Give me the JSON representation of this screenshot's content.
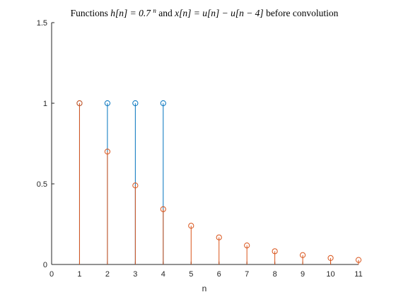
{
  "chart_data": {
    "type": "stem",
    "title": {
      "prefix": "Functions ",
      "h_expr": "h[n] = 0.7",
      "h_sup": "n",
      "middle": " and ",
      "x_expr": "x[n] = u[n] − u[n − 4]",
      "suffix": " before convolution"
    },
    "xlabel": "n",
    "ylabel": "",
    "xlim": [
      0,
      11
    ],
    "ylim": [
      0,
      1.5
    ],
    "xticks": [
      0,
      1,
      2,
      3,
      4,
      5,
      6,
      7,
      8,
      9,
      10,
      11
    ],
    "yticks": [
      0,
      0.5,
      1,
      1.5
    ],
    "ytick_labels": [
      "0",
      "0.5",
      "1",
      "1.5"
    ],
    "grid": false,
    "series": [
      {
        "x": [
          1,
          2,
          3,
          4
        ],
        "values": [
          1,
          1,
          1,
          1
        ],
        "color": "#0072BD",
        "marker": "circle-open"
      },
      {
        "x": [
          1,
          2,
          3,
          4,
          5,
          6,
          7,
          8,
          9,
          10,
          11
        ],
        "values": [
          1.0,
          0.7,
          0.49,
          0.343,
          0.24,
          0.168,
          0.118,
          0.082,
          0.058,
          0.04,
          0.028
        ],
        "color": "#D95319",
        "marker": "circle-open"
      }
    ]
  }
}
